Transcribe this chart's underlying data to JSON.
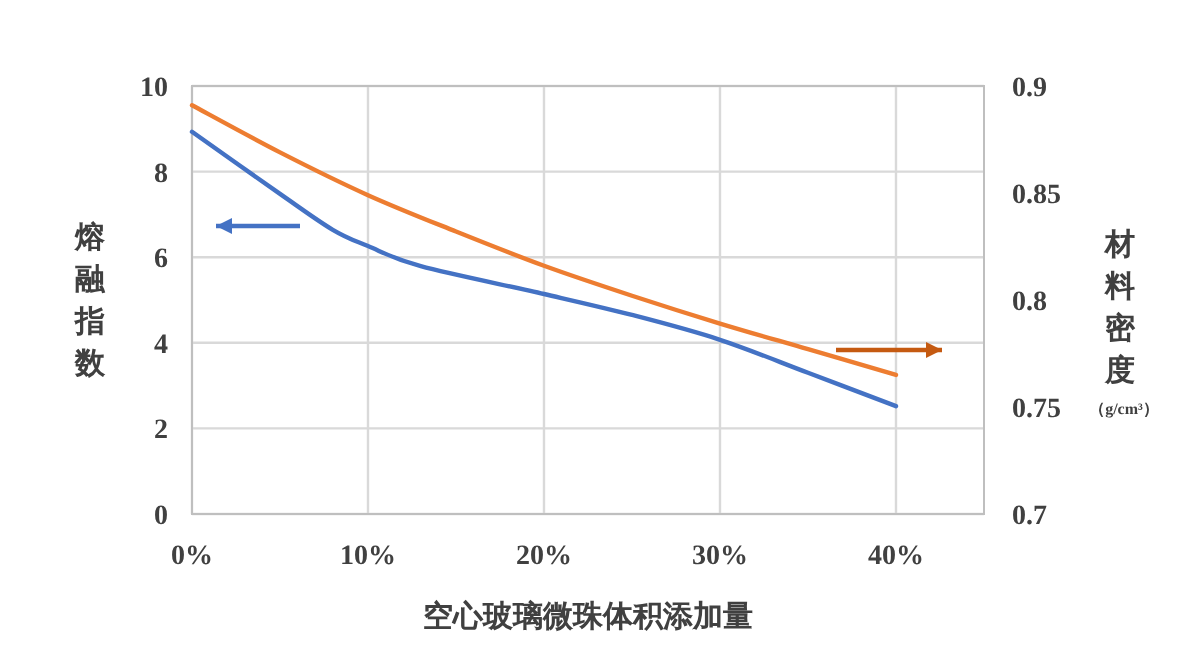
{
  "chart_data": {
    "type": "line",
    "xlabel": "空心玻璃微珠体积添加量",
    "ylabel": "熔融指数",
    "y2label": "材料密度（g/cm³）",
    "grid": true,
    "xlim": [
      0,
      45
    ],
    "xticks": [
      {
        "value": 0,
        "label": "0%"
      },
      {
        "value": 10,
        "label": "10%"
      },
      {
        "value": 20,
        "label": "20%"
      },
      {
        "value": 30,
        "label": "30%"
      },
      {
        "value": 40,
        "label": "40%"
      }
    ],
    "ylim": [
      0,
      10
    ],
    "yticks": [
      0,
      2,
      4,
      6,
      8,
      10
    ],
    "y2lim": [
      0.7,
      0.9
    ],
    "y2ticks": [
      0.7,
      0.75,
      0.8,
      0.85,
      0.9
    ],
    "series": [
      {
        "color": "#4472c4",
        "x": [
          0,
          5,
          8,
          10,
          13,
          20,
          25,
          30,
          35,
          40
        ],
        "values": [
          8.93,
          7.48,
          6.64,
          6.26,
          5.79,
          5.14,
          4.65,
          4.07,
          3.3,
          2.52
        ]
      },
      {
        "color": "#ed7d31",
        "axis": "y2",
        "x": [
          0,
          5,
          10,
          15,
          20,
          25,
          30,
          35,
          40
        ],
        "values": [
          0.891,
          0.869,
          0.849,
          0.832,
          0.816,
          0.802,
          0.789,
          0.777,
          0.765
        ]
      }
    ]
  }
}
